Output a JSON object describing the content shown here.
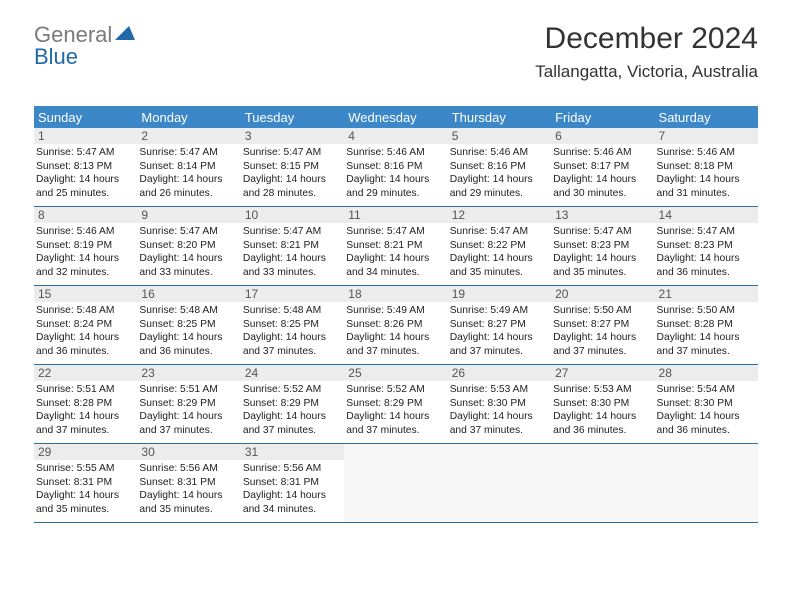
{
  "logo": {
    "textGray": "General",
    "textBlue": "Blue",
    "triColor": "#2168a8"
  },
  "title": "December 2024",
  "location": "Tallangatta, Victoria, Australia",
  "style": {
    "headerBg": "#3b87c8",
    "headerFg": "#ffffff",
    "weekBorder": "#2a6da3",
    "dayNumBg": "#ececec",
    "dayNumFg": "#555555",
    "bodyFontSize": 10.3,
    "titleFontSize": 30,
    "locationFontSize": 17
  },
  "dayNames": [
    "Sunday",
    "Monday",
    "Tuesday",
    "Wednesday",
    "Thursday",
    "Friday",
    "Saturday"
  ],
  "weeks": [
    [
      {
        "n": "1",
        "sr": "5:47 AM",
        "ss": "8:13 PM",
        "dl": "14 hours and 25 minutes."
      },
      {
        "n": "2",
        "sr": "5:47 AM",
        "ss": "8:14 PM",
        "dl": "14 hours and 26 minutes."
      },
      {
        "n": "3",
        "sr": "5:47 AM",
        "ss": "8:15 PM",
        "dl": "14 hours and 28 minutes."
      },
      {
        "n": "4",
        "sr": "5:46 AM",
        "ss": "8:16 PM",
        "dl": "14 hours and 29 minutes."
      },
      {
        "n": "5",
        "sr": "5:46 AM",
        "ss": "8:16 PM",
        "dl": "14 hours and 29 minutes."
      },
      {
        "n": "6",
        "sr": "5:46 AM",
        "ss": "8:17 PM",
        "dl": "14 hours and 30 minutes."
      },
      {
        "n": "7",
        "sr": "5:46 AM",
        "ss": "8:18 PM",
        "dl": "14 hours and 31 minutes."
      }
    ],
    [
      {
        "n": "8",
        "sr": "5:46 AM",
        "ss": "8:19 PM",
        "dl": "14 hours and 32 minutes."
      },
      {
        "n": "9",
        "sr": "5:47 AM",
        "ss": "8:20 PM",
        "dl": "14 hours and 33 minutes."
      },
      {
        "n": "10",
        "sr": "5:47 AM",
        "ss": "8:21 PM",
        "dl": "14 hours and 33 minutes."
      },
      {
        "n": "11",
        "sr": "5:47 AM",
        "ss": "8:21 PM",
        "dl": "14 hours and 34 minutes."
      },
      {
        "n": "12",
        "sr": "5:47 AM",
        "ss": "8:22 PM",
        "dl": "14 hours and 35 minutes."
      },
      {
        "n": "13",
        "sr": "5:47 AM",
        "ss": "8:23 PM",
        "dl": "14 hours and 35 minutes."
      },
      {
        "n": "14",
        "sr": "5:47 AM",
        "ss": "8:23 PM",
        "dl": "14 hours and 36 minutes."
      }
    ],
    [
      {
        "n": "15",
        "sr": "5:48 AM",
        "ss": "8:24 PM",
        "dl": "14 hours and 36 minutes."
      },
      {
        "n": "16",
        "sr": "5:48 AM",
        "ss": "8:25 PM",
        "dl": "14 hours and 36 minutes."
      },
      {
        "n": "17",
        "sr": "5:48 AM",
        "ss": "8:25 PM",
        "dl": "14 hours and 37 minutes."
      },
      {
        "n": "18",
        "sr": "5:49 AM",
        "ss": "8:26 PM",
        "dl": "14 hours and 37 minutes."
      },
      {
        "n": "19",
        "sr": "5:49 AM",
        "ss": "8:27 PM",
        "dl": "14 hours and 37 minutes."
      },
      {
        "n": "20",
        "sr": "5:50 AM",
        "ss": "8:27 PM",
        "dl": "14 hours and 37 minutes."
      },
      {
        "n": "21",
        "sr": "5:50 AM",
        "ss": "8:28 PM",
        "dl": "14 hours and 37 minutes."
      }
    ],
    [
      {
        "n": "22",
        "sr": "5:51 AM",
        "ss": "8:28 PM",
        "dl": "14 hours and 37 minutes."
      },
      {
        "n": "23",
        "sr": "5:51 AM",
        "ss": "8:29 PM",
        "dl": "14 hours and 37 minutes."
      },
      {
        "n": "24",
        "sr": "5:52 AM",
        "ss": "8:29 PM",
        "dl": "14 hours and 37 minutes."
      },
      {
        "n": "25",
        "sr": "5:52 AM",
        "ss": "8:29 PM",
        "dl": "14 hours and 37 minutes."
      },
      {
        "n": "26",
        "sr": "5:53 AM",
        "ss": "8:30 PM",
        "dl": "14 hours and 37 minutes."
      },
      {
        "n": "27",
        "sr": "5:53 AM",
        "ss": "8:30 PM",
        "dl": "14 hours and 36 minutes."
      },
      {
        "n": "28",
        "sr": "5:54 AM",
        "ss": "8:30 PM",
        "dl": "14 hours and 36 minutes."
      }
    ],
    [
      {
        "n": "29",
        "sr": "5:55 AM",
        "ss": "8:31 PM",
        "dl": "14 hours and 35 minutes."
      },
      {
        "n": "30",
        "sr": "5:56 AM",
        "ss": "8:31 PM",
        "dl": "14 hours and 35 minutes."
      },
      {
        "n": "31",
        "sr": "5:56 AM",
        "ss": "8:31 PM",
        "dl": "14 hours and 34 minutes."
      },
      null,
      null,
      null,
      null
    ]
  ],
  "labels": {
    "sunrise": "Sunrise:",
    "sunset": "Sunset:",
    "daylight": "Daylight:"
  }
}
